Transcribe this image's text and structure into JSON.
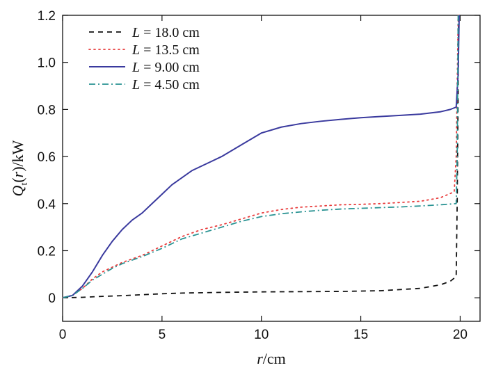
{
  "chart_data": {
    "type": "line",
    "xlabel": "r/cm",
    "ylabel": "Qt(r)/kW",
    "xlim": [
      0,
      21
    ],
    "ylim": [
      -0.1,
      1.2
    ],
    "xticks": [
      0,
      5,
      10,
      15,
      20
    ],
    "yticks": [
      0,
      0.2,
      0.4,
      0.6,
      0.8,
      1.0,
      1.2
    ],
    "ytick_labels": [
      "0",
      "0.2",
      "0.4",
      "0.6",
      "0.8",
      "1.0",
      "1.2"
    ],
    "xtick_labels": [
      "0",
      "5",
      "10",
      "15",
      "20"
    ],
    "grid": false,
    "legend_position": "top-left",
    "series": [
      {
        "name": "L = 18.0 cm",
        "legend_var": "L",
        "legend_value": "= 18.0 cm",
        "color": "#111111",
        "style": "dashed",
        "x": [
          0,
          1,
          2,
          3,
          4,
          5,
          6,
          8,
          10,
          12,
          14,
          16,
          18,
          19,
          19.5,
          19.8,
          19.85,
          19.9,
          19.92
        ],
        "y": [
          0,
          0.002,
          0.006,
          0.009,
          0.013,
          0.017,
          0.02,
          0.023,
          0.025,
          0.026,
          0.027,
          0.03,
          0.04,
          0.055,
          0.07,
          0.09,
          0.4,
          0.9,
          1.2
        ]
      },
      {
        "name": "L = 13.5 cm",
        "legend_var": "L",
        "legend_value": "= 13.5 cm",
        "color": "#e83c3c",
        "style": "dotted",
        "x": [
          0,
          0.5,
          1,
          1.5,
          2,
          2.5,
          3,
          4,
          5,
          6,
          7,
          8,
          9,
          10,
          11,
          12,
          13,
          14,
          15,
          16,
          17,
          18,
          19,
          19.7,
          19.8,
          19.85,
          19.9
        ],
        "y": [
          0,
          0.01,
          0.04,
          0.08,
          0.11,
          0.13,
          0.15,
          0.18,
          0.22,
          0.26,
          0.29,
          0.31,
          0.335,
          0.36,
          0.375,
          0.385,
          0.39,
          0.395,
          0.397,
          0.4,
          0.405,
          0.41,
          0.425,
          0.45,
          0.6,
          0.9,
          1.2
        ]
      },
      {
        "name": "L = 9.00 cm",
        "legend_var": "L",
        "legend_value": "= 9.00 cm",
        "color": "#3a3a9e",
        "style": "solid",
        "x": [
          0,
          0.5,
          1,
          1.5,
          2,
          2.5,
          3,
          3.5,
          4,
          4.5,
          5,
          5.5,
          6,
          6.5,
          7,
          7.5,
          8,
          9,
          10,
          11,
          12,
          13,
          14,
          15,
          16,
          17,
          18,
          19,
          19.5,
          19.8,
          19.9,
          19.95
        ],
        "y": [
          0,
          0.01,
          0.05,
          0.11,
          0.18,
          0.24,
          0.29,
          0.33,
          0.36,
          0.4,
          0.44,
          0.48,
          0.51,
          0.54,
          0.56,
          0.58,
          0.6,
          0.65,
          0.7,
          0.725,
          0.74,
          0.75,
          0.758,
          0.765,
          0.77,
          0.775,
          0.78,
          0.79,
          0.8,
          0.81,
          0.95,
          1.2
        ]
      },
      {
        "name": "L = 4.50 cm",
        "legend_var": "L",
        "legend_value": "= 4.50 cm",
        "color": "#2a9393",
        "style": "dashdot",
        "x": [
          0,
          0.5,
          1,
          1.5,
          2,
          2.5,
          3,
          4,
          5,
          6,
          7,
          8,
          9,
          10,
          11,
          12,
          13,
          14,
          15,
          16,
          17,
          18,
          19,
          19.8,
          19.85,
          19.9
        ],
        "y": [
          0,
          0.01,
          0.04,
          0.075,
          0.1,
          0.125,
          0.145,
          0.175,
          0.21,
          0.25,
          0.275,
          0.3,
          0.325,
          0.345,
          0.357,
          0.365,
          0.372,
          0.377,
          0.38,
          0.383,
          0.386,
          0.39,
          0.395,
          0.4,
          0.6,
          1.2
        ]
      }
    ]
  }
}
